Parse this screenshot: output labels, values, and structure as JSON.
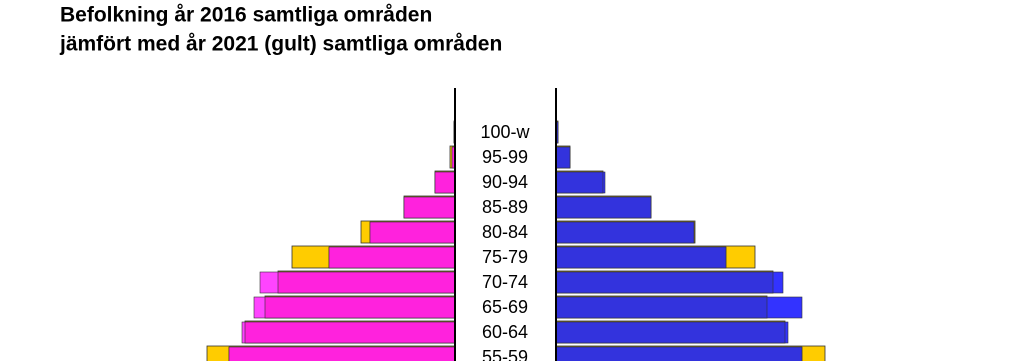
{
  "chart_data": {
    "type": "pyramid",
    "title": "Befolkning år 2016 samtliga områden",
    "subtitle": "jämfört med år 2021 (gult) samtliga områden",
    "categories": [
      "100-w",
      "95-99",
      "90-94",
      "85-89",
      "80-84",
      "75-79",
      "70-74",
      "65-69",
      "60-64",
      "55-59"
    ],
    "series": [
      {
        "side": "left",
        "year": 2016,
        "color": "#ff22dd",
        "excess_color": "#ff44ff",
        "values": [
          1,
          3,
          20,
          51,
          85,
          126,
          195,
          201,
          213,
          226
        ]
      },
      {
        "side": "left",
        "year": 2021,
        "color": "#ffcc00",
        "values": [
          1,
          5,
          20,
          51,
          94,
          163,
          177,
          190,
          210,
          248
        ]
      },
      {
        "side": "right",
        "year": 2016,
        "color": "#3333dd",
        "excess_color": "#3333ff",
        "values": [
          2,
          14,
          49,
          95,
          138,
          170,
          227,
          246,
          232,
          246
        ]
      },
      {
        "side": "right",
        "year": 2021,
        "color": "#ffcc00",
        "values": [
          2,
          14,
          47,
          95,
          139,
          199,
          217,
          211,
          229,
          269
        ]
      }
    ]
  }
}
